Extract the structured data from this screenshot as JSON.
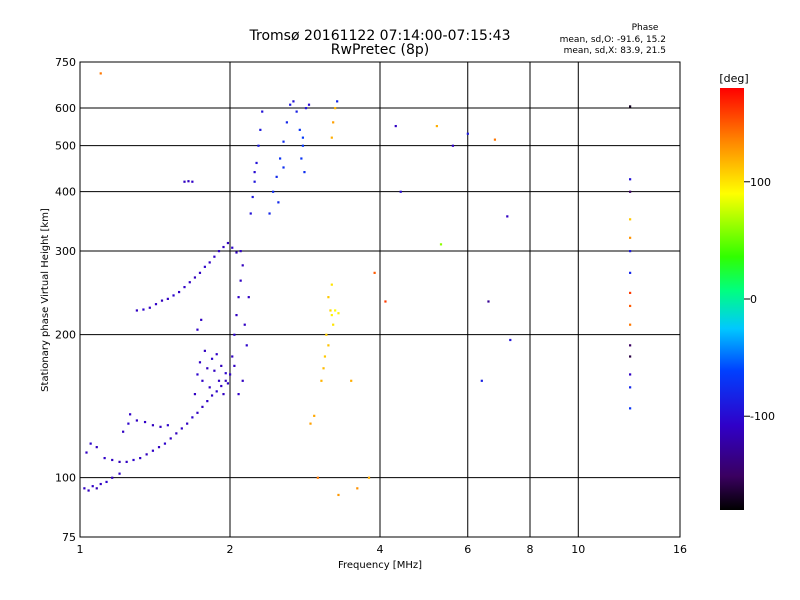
{
  "header": {
    "title_line1": "Tromsø 20161122 07:14:00-07:15:43",
    "title_line2": "RwPretec (8p)",
    "phase_title": "Phase",
    "phase_stats_o": "mean, sd,O: -91.6, 15.2",
    "phase_stats_x": "mean, sd,X:  83.9, 21.5"
  },
  "colorbar": {
    "label": "[deg]",
    "ticks": [
      {
        "value": 100,
        "label": "100"
      },
      {
        "value": 0,
        "label": "0"
      },
      {
        "value": -100,
        "label": "-100"
      }
    ],
    "range": [
      -180,
      180
    ]
  },
  "chart_data": {
    "type": "scatter",
    "title": "Tromsø 20161122 07:14:00-07:15:43",
    "subtitle": "RwPretec (8p)",
    "xlabel": "Frequency [MHz]",
    "ylabel": "Stationary phase Virtual Height [km]",
    "xscale": "log",
    "yscale": "log",
    "xlim": [
      1,
      16
    ],
    "ylim": [
      75,
      750
    ],
    "xticks": [
      1,
      2,
      4,
      6,
      8,
      10,
      16
    ],
    "xtick_labels": [
      "1",
      "2",
      "4",
      "6",
      "8",
      "10",
      "16"
    ],
    "yticks": [
      75,
      100,
      200,
      300,
      400,
      500,
      600,
      750
    ],
    "ytick_labels": [
      "75",
      "100",
      "200",
      "300",
      "400",
      "500",
      "600",
      "750"
    ],
    "grid": true,
    "color_encoding": "phase [deg]",
    "points": [
      {
        "x": 1.02,
        "y": 95,
        "c": -110
      },
      {
        "x": 1.04,
        "y": 94,
        "c": -112
      },
      {
        "x": 1.06,
        "y": 96,
        "c": -108
      },
      {
        "x": 1.08,
        "y": 95,
        "c": -115
      },
      {
        "x": 1.1,
        "y": 97,
        "c": -110
      },
      {
        "x": 1.13,
        "y": 98,
        "c": -105
      },
      {
        "x": 1.16,
        "y": 100,
        "c": -112
      },
      {
        "x": 1.2,
        "y": 102,
        "c": -108
      },
      {
        "x": 1.03,
        "y": 113,
        "c": -110
      },
      {
        "x": 1.05,
        "y": 118,
        "c": -105
      },
      {
        "x": 1.08,
        "y": 116,
        "c": -112
      },
      {
        "x": 1.12,
        "y": 110,
        "c": -108
      },
      {
        "x": 1.16,
        "y": 109,
        "c": -110
      },
      {
        "x": 1.2,
        "y": 108,
        "c": -115
      },
      {
        "x": 1.24,
        "y": 108,
        "c": -110
      },
      {
        "x": 1.28,
        "y": 109,
        "c": -105
      },
      {
        "x": 1.32,
        "y": 110,
        "c": -110
      },
      {
        "x": 1.36,
        "y": 112,
        "c": -112
      },
      {
        "x": 1.4,
        "y": 114,
        "c": -108
      },
      {
        "x": 1.44,
        "y": 116,
        "c": -110
      },
      {
        "x": 1.48,
        "y": 118,
        "c": -105
      },
      {
        "x": 1.52,
        "y": 121,
        "c": -110
      },
      {
        "x": 1.56,
        "y": 124,
        "c": -112
      },
      {
        "x": 1.6,
        "y": 127,
        "c": -108
      },
      {
        "x": 1.64,
        "y": 130,
        "c": -110
      },
      {
        "x": 1.68,
        "y": 134,
        "c": -105
      },
      {
        "x": 1.72,
        "y": 137,
        "c": -110
      },
      {
        "x": 1.76,
        "y": 141,
        "c": -112
      },
      {
        "x": 1.8,
        "y": 145,
        "c": -108
      },
      {
        "x": 1.84,
        "y": 149,
        "c": -110
      },
      {
        "x": 1.88,
        "y": 152,
        "c": -105
      },
      {
        "x": 1.92,
        "y": 156,
        "c": -110
      },
      {
        "x": 1.96,
        "y": 160,
        "c": -112
      },
      {
        "x": 2.0,
        "y": 165,
        "c": -108
      },
      {
        "x": 2.04,
        "y": 172,
        "c": -110
      },
      {
        "x": 1.25,
        "y": 130,
        "c": -105
      },
      {
        "x": 1.3,
        "y": 132,
        "c": -110
      },
      {
        "x": 1.35,
        "y": 131,
        "c": -108
      },
      {
        "x": 1.4,
        "y": 129,
        "c": -112
      },
      {
        "x": 1.45,
        "y": 128,
        "c": -110
      },
      {
        "x": 1.5,
        "y": 129,
        "c": -105
      },
      {
        "x": 1.22,
        "y": 125,
        "c": -110
      },
      {
        "x": 1.26,
        "y": 136,
        "c": -108
      },
      {
        "x": 1.3,
        "y": 225,
        "c": -110
      },
      {
        "x": 1.34,
        "y": 226,
        "c": -105
      },
      {
        "x": 1.38,
        "y": 228,
        "c": -110
      },
      {
        "x": 1.42,
        "y": 232,
        "c": -108
      },
      {
        "x": 1.46,
        "y": 236,
        "c": -112
      },
      {
        "x": 1.5,
        "y": 238,
        "c": -110
      },
      {
        "x": 1.54,
        "y": 242,
        "c": -105
      },
      {
        "x": 1.58,
        "y": 246,
        "c": -110
      },
      {
        "x": 1.62,
        "y": 252,
        "c": -108
      },
      {
        "x": 1.66,
        "y": 258,
        "c": -110
      },
      {
        "x": 1.7,
        "y": 264,
        "c": -112
      },
      {
        "x": 1.74,
        "y": 270,
        "c": -110
      },
      {
        "x": 1.78,
        "y": 278,
        "c": -105
      },
      {
        "x": 1.82,
        "y": 284,
        "c": -110
      },
      {
        "x": 1.86,
        "y": 292,
        "c": -108
      },
      {
        "x": 1.9,
        "y": 300,
        "c": -110
      },
      {
        "x": 1.94,
        "y": 306,
        "c": -112
      },
      {
        "x": 1.98,
        "y": 312,
        "c": -110
      },
      {
        "x": 2.02,
        "y": 305,
        "c": -105
      },
      {
        "x": 2.06,
        "y": 298,
        "c": -110
      },
      {
        "x": 2.1,
        "y": 300,
        "c": -108
      },
      {
        "x": 1.62,
        "y": 420,
        "c": -110
      },
      {
        "x": 1.65,
        "y": 421,
        "c": -112
      },
      {
        "x": 1.68,
        "y": 420,
        "c": -108
      },
      {
        "x": 1.7,
        "y": 150,
        "c": -110
      },
      {
        "x": 1.72,
        "y": 165,
        "c": -105
      },
      {
        "x": 1.74,
        "y": 175,
        "c": -110
      },
      {
        "x": 1.76,
        "y": 160,
        "c": -108
      },
      {
        "x": 1.78,
        "y": 185,
        "c": -110
      },
      {
        "x": 1.8,
        "y": 170,
        "c": -112
      },
      {
        "x": 1.82,
        "y": 155,
        "c": -110
      },
      {
        "x": 1.84,
        "y": 178,
        "c": -105
      },
      {
        "x": 1.86,
        "y": 168,
        "c": -110
      },
      {
        "x": 1.88,
        "y": 182,
        "c": -108
      },
      {
        "x": 1.9,
        "y": 160,
        "c": -110
      },
      {
        "x": 1.92,
        "y": 172,
        "c": -112
      },
      {
        "x": 1.94,
        "y": 150,
        "c": -110
      },
      {
        "x": 1.96,
        "y": 166,
        "c": -105
      },
      {
        "x": 1.98,
        "y": 158,
        "c": -110
      },
      {
        "x": 1.72,
        "y": 205,
        "c": -108
      },
      {
        "x": 1.75,
        "y": 215,
        "c": -110
      },
      {
        "x": 2.02,
        "y": 180,
        "c": -110
      },
      {
        "x": 2.04,
        "y": 200,
        "c": -105
      },
      {
        "x": 2.06,
        "y": 220,
        "c": -110
      },
      {
        "x": 2.08,
        "y": 240,
        "c": -108
      },
      {
        "x": 2.1,
        "y": 260,
        "c": -110
      },
      {
        "x": 2.12,
        "y": 280,
        "c": -112
      },
      {
        "x": 2.14,
        "y": 210,
        "c": -110
      },
      {
        "x": 2.16,
        "y": 190,
        "c": -105
      },
      {
        "x": 2.12,
        "y": 160,
        "c": -110
      },
      {
        "x": 2.08,
        "y": 150,
        "c": -108
      },
      {
        "x": 2.18,
        "y": 240,
        "c": -110
      },
      {
        "x": 2.2,
        "y": 360,
        "c": -95
      },
      {
        "x": 2.22,
        "y": 390,
        "c": -90
      },
      {
        "x": 2.24,
        "y": 420,
        "c": -92
      },
      {
        "x": 2.26,
        "y": 460,
        "c": -95
      },
      {
        "x": 2.28,
        "y": 500,
        "c": -88
      },
      {
        "x": 2.3,
        "y": 540,
        "c": -90
      },
      {
        "x": 2.32,
        "y": 590,
        "c": -95
      },
      {
        "x": 2.24,
        "y": 440,
        "c": -100
      },
      {
        "x": 2.4,
        "y": 360,
        "c": -80
      },
      {
        "x": 2.44,
        "y": 400,
        "c": -75
      },
      {
        "x": 2.48,
        "y": 430,
        "c": -78
      },
      {
        "x": 2.52,
        "y": 470,
        "c": -72
      },
      {
        "x": 2.56,
        "y": 510,
        "c": -76
      },
      {
        "x": 2.6,
        "y": 560,
        "c": -80
      },
      {
        "x": 2.64,
        "y": 610,
        "c": -90
      },
      {
        "x": 2.68,
        "y": 620,
        "c": -95
      },
      {
        "x": 2.72,
        "y": 590,
        "c": -85
      },
      {
        "x": 2.76,
        "y": 540,
        "c": -70
      },
      {
        "x": 2.8,
        "y": 500,
        "c": -68
      },
      {
        "x": 2.84,
        "y": 600,
        "c": -95
      },
      {
        "x": 2.88,
        "y": 610,
        "c": -100
      },
      {
        "x": 2.56,
        "y": 450,
        "c": -74
      },
      {
        "x": 2.5,
        "y": 380,
        "c": -79
      },
      {
        "x": 2.8,
        "y": 520,
        "c": -65
      },
      {
        "x": 2.78,
        "y": 470,
        "c": -70
      },
      {
        "x": 2.82,
        "y": 440,
        "c": -75
      },
      {
        "x": 3.15,
        "y": 240,
        "c": 110
      },
      {
        "x": 3.18,
        "y": 225,
        "c": 105
      },
      {
        "x": 3.2,
        "y": 220,
        "c": 95
      },
      {
        "x": 3.22,
        "y": 210,
        "c": 100
      },
      {
        "x": 3.12,
        "y": 200,
        "c": 108
      },
      {
        "x": 3.15,
        "y": 190,
        "c": 112
      },
      {
        "x": 3.1,
        "y": 180,
        "c": 110
      },
      {
        "x": 3.08,
        "y": 170,
        "c": 115
      },
      {
        "x": 3.05,
        "y": 160,
        "c": 118
      },
      {
        "x": 3.2,
        "y": 255,
        "c": 100
      },
      {
        "x": 3.25,
        "y": 225,
        "c": 90
      },
      {
        "x": 3.3,
        "y": 222,
        "c": 95
      },
      {
        "x": 3.2,
        "y": 520,
        "c": 120
      },
      {
        "x": 3.22,
        "y": 560,
        "c": 125
      },
      {
        "x": 3.25,
        "y": 600,
        "c": 118
      },
      {
        "x": 3.28,
        "y": 620,
        "c": -80
      },
      {
        "x": 2.9,
        "y": 130,
        "c": 125
      },
      {
        "x": 2.95,
        "y": 135,
        "c": 122
      },
      {
        "x": 3.0,
        "y": 100,
        "c": 140
      },
      {
        "x": 3.3,
        "y": 92,
        "c": 128
      },
      {
        "x": 3.5,
        "y": 160,
        "c": 120
      },
      {
        "x": 3.6,
        "y": 95,
        "c": 130
      },
      {
        "x": 3.8,
        "y": 100,
        "c": 120
      },
      {
        "x": 3.9,
        "y": 270,
        "c": 150
      },
      {
        "x": 4.1,
        "y": 235,
        "c": 160
      },
      {
        "x": 4.3,
        "y": 550,
        "c": -110
      },
      {
        "x": 4.4,
        "y": 400,
        "c": -100
      },
      {
        "x": 5.2,
        "y": 550,
        "c": 120
      },
      {
        "x": 5.6,
        "y": 500,
        "c": -110
      },
      {
        "x": 6.0,
        "y": 530,
        "c": -90
      },
      {
        "x": 5.3,
        "y": 310,
        "c": 60
      },
      {
        "x": 6.4,
        "y": 160,
        "c": -85
      },
      {
        "x": 6.6,
        "y": 235,
        "c": -130
      },
      {
        "x": 6.8,
        "y": 515,
        "c": 140
      },
      {
        "x": 7.2,
        "y": 355,
        "c": -110
      },
      {
        "x": 7.3,
        "y": 195,
        "c": -95
      },
      {
        "x": 12.7,
        "y": 605,
        "c": -170
      },
      {
        "x": 12.7,
        "y": 425,
        "c": -95
      },
      {
        "x": 12.7,
        "y": 400,
        "c": -150
      },
      {
        "x": 12.7,
        "y": 350,
        "c": 110
      },
      {
        "x": 12.7,
        "y": 320,
        "c": 130
      },
      {
        "x": 12.7,
        "y": 300,
        "c": -90
      },
      {
        "x": 12.7,
        "y": 270,
        "c": -80
      },
      {
        "x": 12.7,
        "y": 245,
        "c": 160
      },
      {
        "x": 12.7,
        "y": 230,
        "c": 150
      },
      {
        "x": 12.7,
        "y": 210,
        "c": 140
      },
      {
        "x": 12.7,
        "y": 190,
        "c": -150
      },
      {
        "x": 12.7,
        "y": 180,
        "c": -160
      },
      {
        "x": 12.7,
        "y": 165,
        "c": -110
      },
      {
        "x": 12.7,
        "y": 155,
        "c": -80
      },
      {
        "x": 12.7,
        "y": 140,
        "c": -70
      },
      {
        "x": 1.1,
        "y": 710,
        "c": 140
      }
    ]
  }
}
